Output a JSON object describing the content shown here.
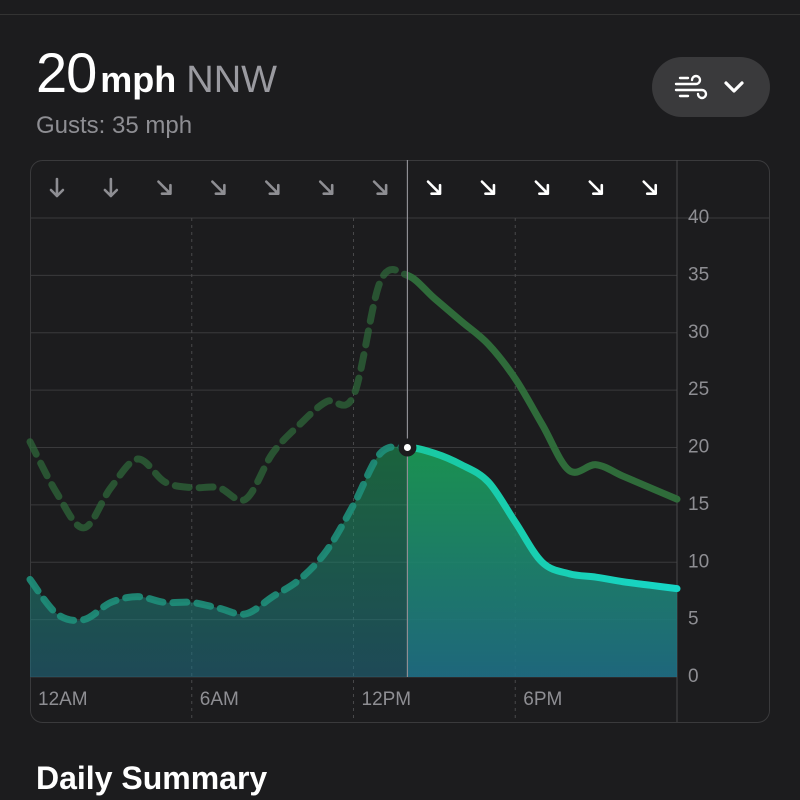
{
  "header": {
    "speed": "20",
    "unit": "mph",
    "direction": "NNW",
    "gusts": "Gusts: 35 mph"
  },
  "chart_data": {
    "type": "line",
    "x": [
      0,
      1,
      2,
      3,
      4,
      5,
      6,
      7,
      8,
      9,
      10,
      11,
      12,
      13,
      14,
      15,
      16,
      17,
      18,
      19,
      20,
      21,
      22,
      23,
      24
    ],
    "series": [
      {
        "name": "Gusts",
        "color": "#2f6b3a",
        "values": [
          20.5,
          16,
          13,
          16.5,
          19,
          17,
          16.5,
          16.5,
          15.5,
          19.5,
          22,
          24,
          24.5,
          34.5,
          35,
          33,
          31,
          29,
          26,
          22,
          18,
          18.5,
          17.5,
          16.5,
          15.5
        ]
      },
      {
        "name": "Wind",
        "color": "#1fd39a",
        "values": [
          8.5,
          5.5,
          5,
          6.5,
          7,
          6.5,
          6.5,
          6,
          5.5,
          7,
          8.5,
          11,
          15,
          19.5,
          20,
          19.5,
          18.5,
          17,
          13.5,
          10,
          9,
          8.7,
          8.3,
          8,
          7.7
        ]
      }
    ],
    "now": 14,
    "xlim": [
      0,
      24
    ],
    "xticks": [
      {
        "value": 0,
        "label": "12AM"
      },
      {
        "value": 6,
        "label": "6AM"
      },
      {
        "value": 12,
        "label": "12PM"
      },
      {
        "value": 18,
        "label": "6PM"
      }
    ],
    "ylim": [
      0,
      40
    ],
    "yticks": [
      0,
      5,
      10,
      15,
      20,
      25,
      30,
      35,
      40
    ],
    "grid": true
  },
  "footer": {
    "title": "Daily Summary"
  }
}
